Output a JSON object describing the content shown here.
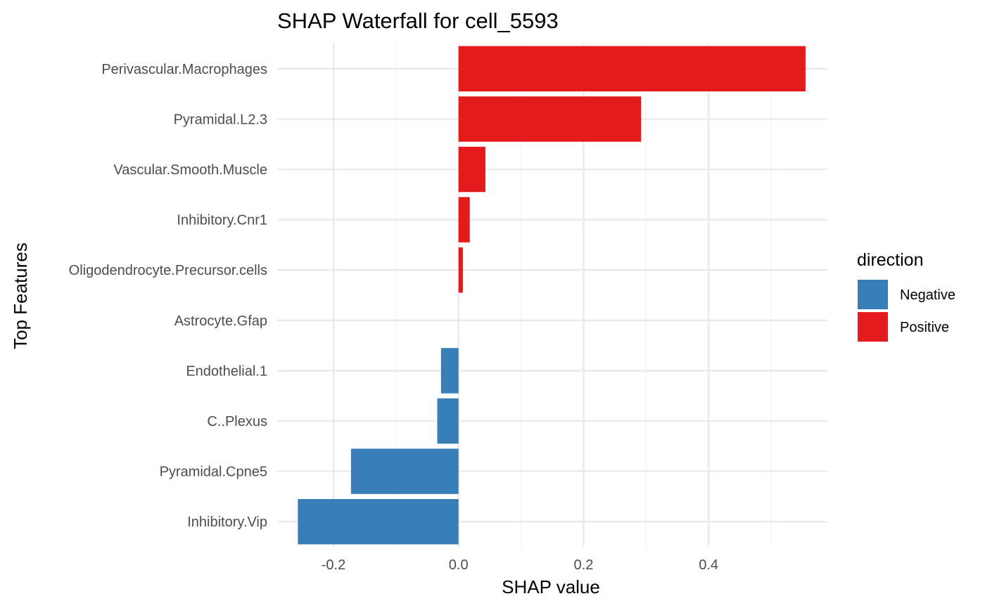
{
  "chart_data": {
    "type": "bar",
    "orientation": "horizontal",
    "title": "SHAP Waterfall for cell_5593",
    "xlabel": "SHAP value",
    "ylabel": "Top Features",
    "xlim": [
      -0.29,
      0.59
    ],
    "x_ticks": [
      -0.2,
      0.0,
      0.2,
      0.4
    ],
    "x_tick_labels": [
      "-0.2",
      "0.0",
      "0.2",
      "0.4"
    ],
    "grid": true,
    "categories": [
      "Perivascular.Macrophages",
      "Pyramidal.L2.3",
      "Vascular.Smooth.Muscle",
      "Inhibitory.Cnr1",
      "Oligodendrocyte.Precursor.cells",
      "Astrocyte.Gfap",
      "Endothelial.1",
      "C..Plexus",
      "Pyramidal.Cpne5",
      "Inhibitory.Vip"
    ],
    "values": [
      0.555,
      0.292,
      0.043,
      0.018,
      0.007,
      0.0,
      -0.028,
      -0.034,
      -0.172,
      -0.257
    ],
    "direction": [
      "Positive",
      "Positive",
      "Positive",
      "Positive",
      "Positive",
      "Positive",
      "Negative",
      "Negative",
      "Negative",
      "Negative"
    ],
    "legend": {
      "title": "direction",
      "position": "right",
      "entries": [
        {
          "label": "Negative",
          "color": "#377EB8"
        },
        {
          "label": "Positive",
          "color": "#E41A1C"
        }
      ]
    }
  }
}
